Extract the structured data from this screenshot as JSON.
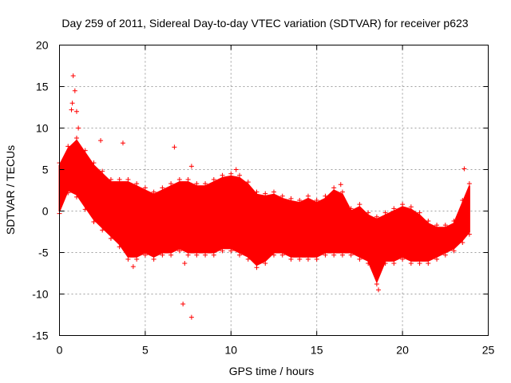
{
  "chart_data": {
    "type": "scatter",
    "title": "Day 259 of 2011, Sidereal Day-to-day VTEC variation (SDTVAR) for receiver p623",
    "xlabel": "GPS time / hours",
    "ylabel": "SDTVAR / TECUs",
    "xlim": [
      0,
      25
    ],
    "ylim": [
      -15,
      20
    ],
    "x_ticks": [
      0,
      5,
      10,
      15,
      20,
      25
    ],
    "y_ticks": [
      -15,
      -10,
      -5,
      0,
      5,
      10,
      15,
      20
    ],
    "grid": true,
    "marker": "+",
    "color": "#ff0000",
    "series": [
      {
        "name": "SDTVAR",
        "band": {
          "x": [
            0,
            0.5,
            1.0,
            1.5,
            2.0,
            2.5,
            3.0,
            3.5,
            4.0,
            4.5,
            5.0,
            5.5,
            6.0,
            6.5,
            7.0,
            7.5,
            8.0,
            8.5,
            9.0,
            9.5,
            10.0,
            10.5,
            11.0,
            11.5,
            12.0,
            12.5,
            13.0,
            13.5,
            14.0,
            14.5,
            15.0,
            15.5,
            16.0,
            16.5,
            17.0,
            17.5,
            18.0,
            18.5,
            19.0,
            19.5,
            20.0,
            20.5,
            21.0,
            21.5,
            22.0,
            22.5,
            23.0,
            23.5,
            23.9
          ],
          "upper": [
            5.5,
            7.5,
            8.5,
            7.0,
            5.5,
            4.5,
            3.5,
            3.5,
            3.5,
            3.0,
            2.5,
            2.0,
            2.5,
            3.0,
            3.5,
            3.5,
            3.0,
            3.0,
            3.5,
            4.0,
            4.2,
            4.0,
            3.2,
            2.0,
            1.8,
            2.0,
            1.5,
            1.2,
            1.0,
            1.5,
            1.0,
            1.5,
            2.5,
            2.0,
            0.0,
            0.5,
            -0.5,
            -1.0,
            -0.5,
            0.0,
            0.5,
            0.2,
            -0.5,
            -1.5,
            -2.0,
            -2.0,
            -1.5,
            1.0,
            3.0
          ],
          "lower": [
            0.0,
            2.5,
            2.0,
            0.5,
            -1.0,
            -2.0,
            -3.0,
            -4.0,
            -5.5,
            -5.5,
            -5.0,
            -5.5,
            -5.0,
            -5.0,
            -4.5,
            -5.0,
            -5.0,
            -5.0,
            -5.0,
            -4.5,
            -4.5,
            -5.0,
            -5.5,
            -6.5,
            -6.0,
            -5.0,
            -5.0,
            -5.5,
            -5.5,
            -5.5,
            -5.5,
            -5.0,
            -5.0,
            -5.0,
            -5.0,
            -5.5,
            -6.0,
            -8.5,
            -6.0,
            -6.0,
            -5.5,
            -6.0,
            -6.0,
            -6.0,
            -5.5,
            -5.0,
            -4.5,
            -3.5,
            -2.5
          ]
        },
        "outliers": [
          {
            "x": 0.8,
            "y": 16.3
          },
          {
            "x": 0.9,
            "y": 14.5
          },
          {
            "x": 0.75,
            "y": 13.0
          },
          {
            "x": 0.7,
            "y": 12.2
          },
          {
            "x": 1.0,
            "y": 12.0
          },
          {
            "x": 1.1,
            "y": 10.0
          },
          {
            "x": 2.4,
            "y": 8.5
          },
          {
            "x": 3.7,
            "y": 8.2
          },
          {
            "x": 6.7,
            "y": 7.7
          },
          {
            "x": 7.7,
            "y": 5.4
          },
          {
            "x": 10.3,
            "y": 5.0
          },
          {
            "x": 16.4,
            "y": 3.2
          },
          {
            "x": 23.6,
            "y": 5.1
          },
          {
            "x": 7.2,
            "y": -11.2
          },
          {
            "x": 7.7,
            "y": -12.8
          },
          {
            "x": 4.3,
            "y": -6.7
          },
          {
            "x": 7.3,
            "y": -6.3
          },
          {
            "x": 18.6,
            "y": -9.5
          }
        ]
      }
    ]
  }
}
